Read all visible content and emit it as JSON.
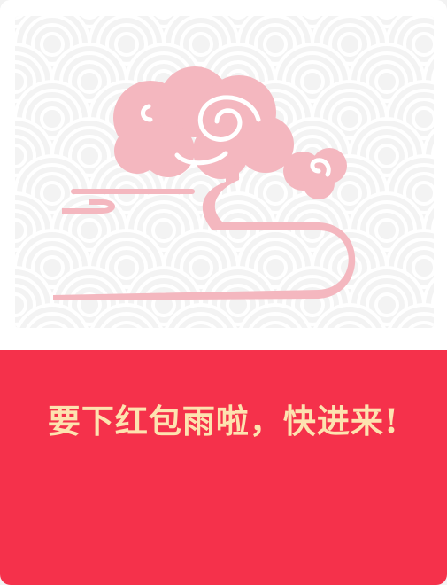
{
  "banner": {
    "headline": "要下红包雨啦，快进来!"
  },
  "colors": {
    "banner_background": "#f5314b",
    "headline_text": "#fde3b0",
    "cloud": "#f4b7bf",
    "pattern_background": "#f3f3f3",
    "pattern_lines": "#ffffff"
  },
  "icons": {
    "illustration": "auspicious-cloud-icon",
    "background": "wave-pattern"
  }
}
